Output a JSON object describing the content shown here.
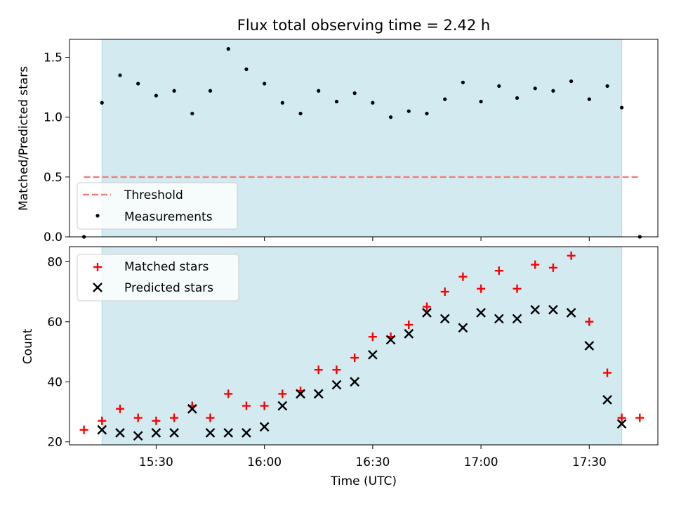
{
  "chart_data": [
    {
      "type": "scatter",
      "title": "Flux total observing time = 2.42 h",
      "ylabel": "Matched/Predicted stars",
      "ylim": [
        0,
        1.65
      ],
      "yticks": [
        0.0,
        0.5,
        1.0,
        1.5
      ],
      "ytick_labels": [
        "0.0",
        "0.5",
        "1.0",
        "1.5"
      ],
      "shaded_region": {
        "start": "15:15",
        "end": "17:39",
        "color": "#d3eaf1"
      },
      "threshold": {
        "name": "Threshold",
        "value": 0.5,
        "x_start": "15:10",
        "x_end": "17:44",
        "color": "#f08080"
      },
      "legend": {
        "placement": "lower-left",
        "entries": [
          "Threshold",
          "Measurements"
        ]
      },
      "series": [
        {
          "name": "Measurements",
          "color": "#000000",
          "points": [
            [
              "15:10",
              0.0
            ],
            [
              "15:15",
              1.12
            ],
            [
              "15:20",
              1.35
            ],
            [
              "15:25",
              1.28
            ],
            [
              "15:30",
              1.18
            ],
            [
              "15:35",
              1.22
            ],
            [
              "15:40",
              1.03
            ],
            [
              "15:45",
              1.22
            ],
            [
              "15:50",
              1.57
            ],
            [
              "15:55",
              1.4
            ],
            [
              "16:00",
              1.28
            ],
            [
              "16:05",
              1.12
            ],
            [
              "16:10",
              1.03
            ],
            [
              "16:15",
              1.22
            ],
            [
              "16:20",
              1.13
            ],
            [
              "16:25",
              1.2
            ],
            [
              "16:30",
              1.12
            ],
            [
              "16:35",
              1.0
            ],
            [
              "16:40",
              1.05
            ],
            [
              "16:45",
              1.03
            ],
            [
              "16:50",
              1.15
            ],
            [
              "16:55",
              1.29
            ],
            [
              "17:00",
              1.13
            ],
            [
              "17:05",
              1.26
            ],
            [
              "17:10",
              1.16
            ],
            [
              "17:15",
              1.24
            ],
            [
              "17:20",
              1.22
            ],
            [
              "17:25",
              1.3
            ],
            [
              "17:30",
              1.15
            ],
            [
              "17:35",
              1.26
            ],
            [
              "17:39",
              1.08
            ],
            [
              "17:44",
              0.0
            ]
          ]
        }
      ]
    },
    {
      "type": "scatter",
      "xlabel": "Time (UTC)",
      "ylabel": "Count",
      "ylim": [
        19,
        85
      ],
      "yticks": [
        20,
        40,
        60,
        80
      ],
      "xlim": [
        "15:06",
        "17:49"
      ],
      "xticks": [
        "15:30",
        "16:00",
        "16:30",
        "17:00",
        "17:30"
      ],
      "shaded_region": {
        "start": "15:15",
        "end": "17:39",
        "color": "#d3eaf1"
      },
      "legend": {
        "placement": "upper-left",
        "entries": [
          "Matched stars",
          "Predicted stars"
        ]
      },
      "series": [
        {
          "name": "Matched stars",
          "marker": "+",
          "color": "#ff0000",
          "points": [
            [
              "15:10",
              24
            ],
            [
              "15:15",
              27
            ],
            [
              "15:20",
              31
            ],
            [
              "15:25",
              28
            ],
            [
              "15:30",
              27
            ],
            [
              "15:35",
              28
            ],
            [
              "15:40",
              32
            ],
            [
              "15:45",
              28
            ],
            [
              "15:50",
              36
            ],
            [
              "15:55",
              32
            ],
            [
              "16:00",
              32
            ],
            [
              "16:05",
              36
            ],
            [
              "16:10",
              37
            ],
            [
              "16:15",
              44
            ],
            [
              "16:20",
              44
            ],
            [
              "16:25",
              48
            ],
            [
              "16:30",
              55
            ],
            [
              "16:35",
              55
            ],
            [
              "16:40",
              59
            ],
            [
              "16:45",
              65
            ],
            [
              "16:50",
              70
            ],
            [
              "16:55",
              75
            ],
            [
              "17:00",
              71
            ],
            [
              "17:05",
              77
            ],
            [
              "17:10",
              71
            ],
            [
              "17:15",
              79
            ],
            [
              "17:20",
              78
            ],
            [
              "17:25",
              82
            ],
            [
              "17:30",
              60
            ],
            [
              "17:35",
              43
            ],
            [
              "17:39",
              28
            ],
            [
              "17:44",
              28
            ]
          ]
        },
        {
          "name": "Predicted stars",
          "marker": "x",
          "color": "#000000",
          "points": [
            [
              "15:15",
              24
            ],
            [
              "15:20",
              23
            ],
            [
              "15:25",
              22
            ],
            [
              "15:30",
              23
            ],
            [
              "15:35",
              23
            ],
            [
              "15:40",
              31
            ],
            [
              "15:45",
              23
            ],
            [
              "15:50",
              23
            ],
            [
              "15:55",
              23
            ],
            [
              "16:00",
              25
            ],
            [
              "16:05",
              32
            ],
            [
              "16:10",
              36
            ],
            [
              "16:15",
              36
            ],
            [
              "16:20",
              39
            ],
            [
              "16:25",
              40
            ],
            [
              "16:30",
              49
            ],
            [
              "16:35",
              54
            ],
            [
              "16:40",
              56
            ],
            [
              "16:45",
              63
            ],
            [
              "16:50",
              61
            ],
            [
              "16:55",
              58
            ],
            [
              "17:00",
              63
            ],
            [
              "17:05",
              61
            ],
            [
              "17:10",
              61
            ],
            [
              "17:15",
              64
            ],
            [
              "17:20",
              64
            ],
            [
              "17:25",
              63
            ],
            [
              "17:30",
              52
            ],
            [
              "17:35",
              34
            ],
            [
              "17:39",
              26
            ]
          ]
        }
      ]
    }
  ]
}
